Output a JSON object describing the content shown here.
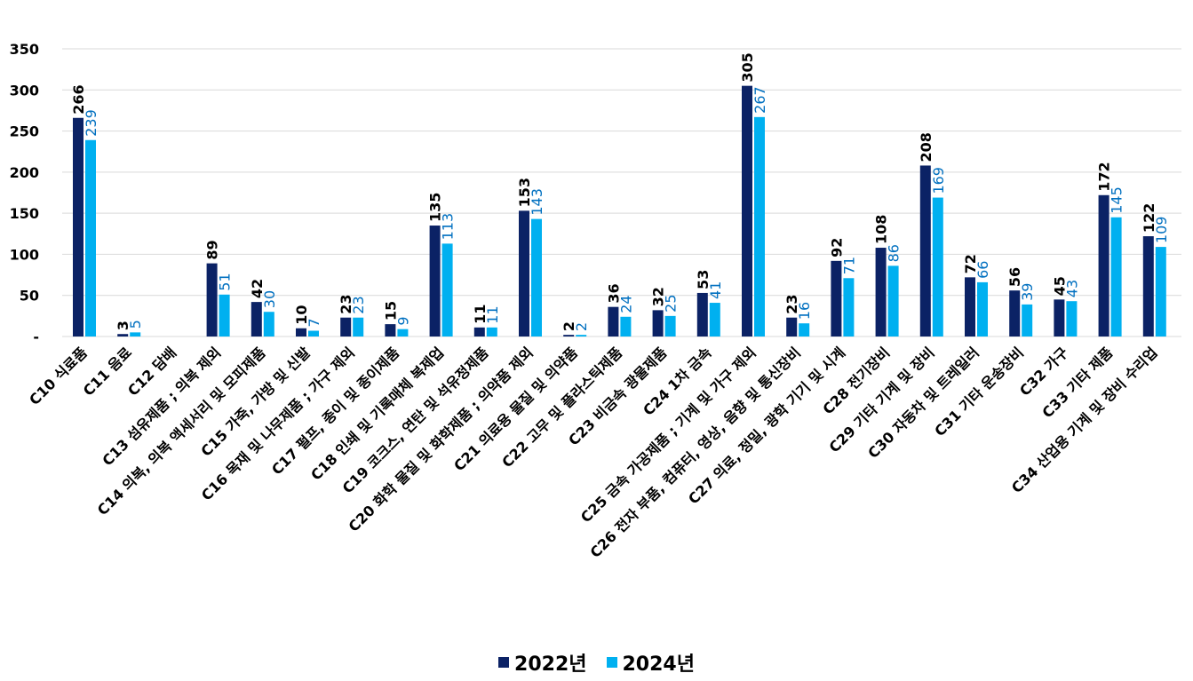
{
  "chart_data": {
    "type": "bar",
    "title": "",
    "xlabel": "",
    "ylabel": "",
    "ylim": [
      0,
      350
    ],
    "yticks": [
      0,
      50,
      100,
      150,
      200,
      250,
      300,
      350
    ],
    "ytick_labels": [
      "-",
      "50",
      "100",
      "150",
      "200",
      "250",
      "300",
      "350"
    ],
    "grid": true,
    "legend_position": "bottom",
    "categories": [
      "C10 식료품",
      "C11 음료",
      "C12 담배",
      "C13 섬유제품 ; 의복 제외",
      "C14 의복, 의복 액세서리 및 모피제품",
      "C15 가죽, 가방 및 신발",
      "C16 목재 및 나무제품 ; 가구 제외",
      "C17 펄프, 종이 및 종이제품",
      "C18 인쇄 및 기록매체 복제업",
      "C19 코크스, 연탄 및 석유정제품",
      "C20 화학 물질 및 화학제품 ; 의약품 제외",
      "C21 의료용 물질 및 의약품",
      "C22 고무 및 플라스틱제품",
      "C23 비금속 광물제품",
      "C24 1차 금속",
      "C25 금속 가공제품 ; 기계 및 가구 제외",
      "C26 전자 부품, 컴퓨터, 영상, 음향 및 통신장비",
      "C27 의료, 정밀, 광학 기기 및 시계",
      "C28 전기장비",
      "C29 기타 기계 및 장비",
      "C30 자동차 및 트레일러",
      "C31 기타 운송장비",
      "C32 가구",
      "C33 기타 제품",
      "C34 산업용 기계 및 장비 수리업"
    ],
    "series": [
      {
        "name": "2022년",
        "color": "#0b2265",
        "label_color": "#000000",
        "values": [
          266,
          3,
          null,
          89,
          42,
          10,
          23,
          15,
          135,
          11,
          153,
          2,
          36,
          32,
          53,
          305,
          23,
          92,
          108,
          208,
          72,
          56,
          45,
          172,
          122
        ]
      },
      {
        "name": "2024년",
        "color": "#00b0f0",
        "label_color": "#0070c0",
        "values": [
          239,
          5,
          null,
          51,
          30,
          7,
          23,
          9,
          113,
          11,
          143,
          2,
          24,
          25,
          41,
          267,
          16,
          71,
          86,
          169,
          66,
          39,
          43,
          145,
          109
        ]
      }
    ]
  }
}
